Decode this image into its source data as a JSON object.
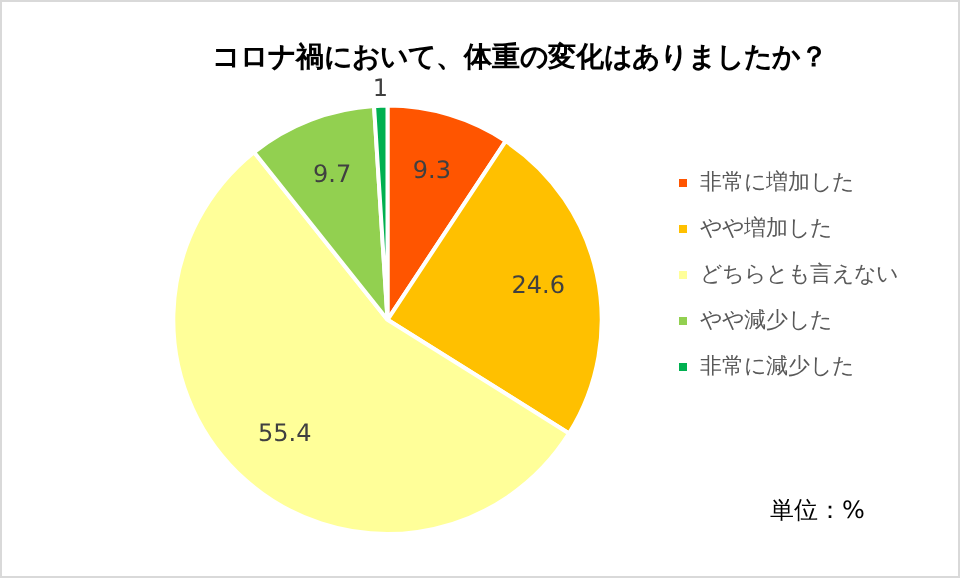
{
  "chart_data": {
    "type": "pie",
    "title": "コロナ禍において、体重の変化はありましたか？",
    "categories": [
      "非常に増加した",
      "やや増加した",
      "どちらとも言えない",
      "やや減少した",
      "非常に減少した"
    ],
    "values": [
      9.3,
      24.6,
      55.4,
      9.7,
      1
    ],
    "colors": [
      "#ff5500",
      "#ffc000",
      "#ffff99",
      "#92d050",
      "#00b050"
    ],
    "data_labels": true,
    "legend": "right",
    "annotations": [
      "単位：%"
    ]
  }
}
